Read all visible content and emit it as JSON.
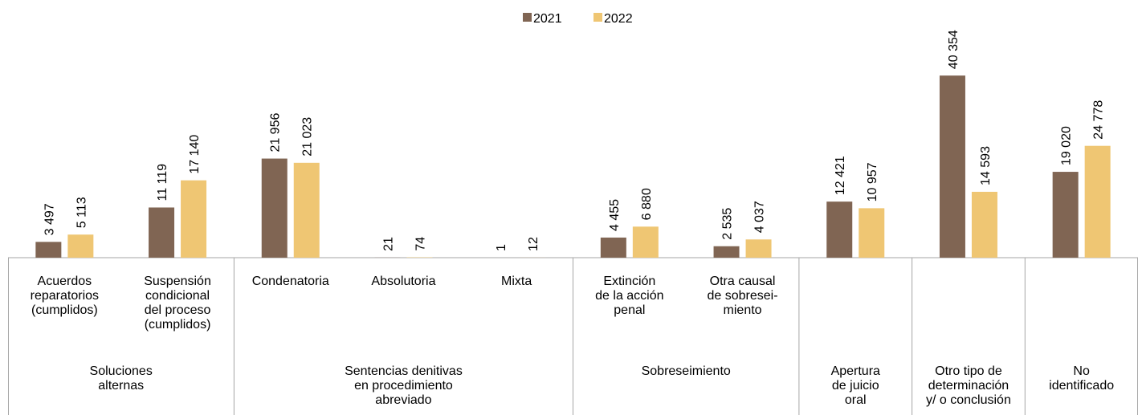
{
  "chart_data": {
    "type": "bar",
    "groups": [
      {
        "name": "Soluciones\nalternas",
        "categories": [
          "Acuerdos\nreparatorios\n(cumplidos)",
          "Suspensión\ncondicional\ndel proceso\n(cumplidos)"
        ]
      },
      {
        "name": "Sentencias denitivas\nen procedimiento\nabreviado",
        "categories": [
          "Condenatoria",
          "Absolutoria",
          "Mixta"
        ]
      },
      {
        "name": "Sobreseimiento",
        "categories": [
          "Extinción\nde la acción\npenal",
          "Otra causal\nde sobresei-\nmiento"
        ]
      },
      {
        "name": "Apertura\nde juicio\noral",
        "categories": [
          null
        ]
      },
      {
        "name": "Otro tipo de\ndeterminación\ny/ o conclusión",
        "categories": [
          null
        ]
      },
      {
        "name": "No\nidentificado",
        "categories": [
          null
        ]
      }
    ],
    "series": [
      {
        "name": "2021",
        "color": "#806553",
        "values": [
          3497,
          11119,
          21956,
          21,
          1,
          4455,
          2535,
          12421,
          40354,
          19020
        ],
        "value_labels": [
          "3 497",
          "11 119",
          "21 956",
          "21",
          "1",
          "4 455",
          "2 535",
          "12 421",
          "40 354",
          "19 020"
        ]
      },
      {
        "name": "2022",
        "color": "#efc673",
        "values": [
          5113,
          17140,
          21023,
          74,
          12,
          6880,
          4037,
          10957,
          14593,
          24778
        ],
        "value_labels": [
          "5 113",
          "17 140",
          "21 023",
          "74",
          "12",
          "6 880",
          "4 037",
          "10 957",
          "14 593",
          "24 778"
        ]
      }
    ],
    "ylim": [
      0,
      45000
    ],
    "legend": "top"
  }
}
